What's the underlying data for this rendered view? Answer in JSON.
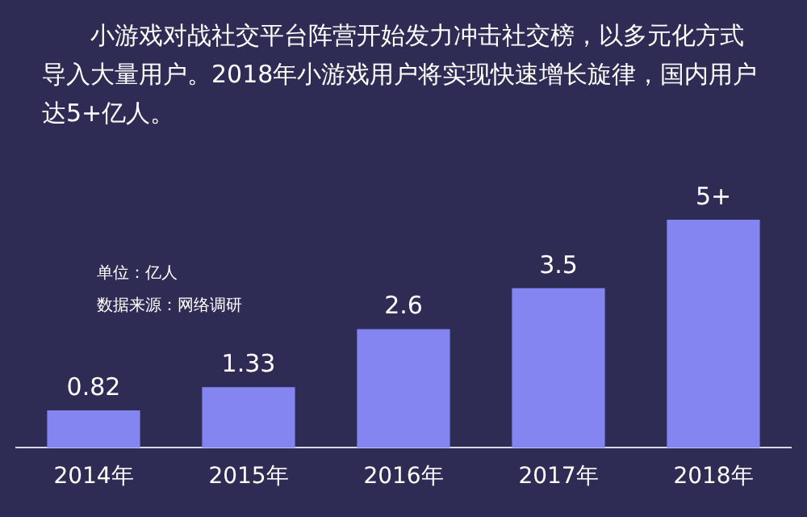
{
  "chart_data": {
    "type": "bar",
    "title": "小游戏对战社交平台阵营开始发力冲击社交榜，以多元化方式导入大量用户。2018年小游戏用户将实现快速增长旋律，国内用户达5+亿人。",
    "categories": [
      "2014年",
      "2015年",
      "2016年",
      "2017年",
      "2018年"
    ],
    "values": [
      0.82,
      1.33,
      2.6,
      3.5,
      5
    ],
    "value_labels": [
      "0.82",
      "1.33",
      "2.6",
      "3.5",
      "5+"
    ],
    "color": "#8585f2",
    "annotations": [
      "单位：亿人",
      "数据来源：网络调研"
    ],
    "legend": false,
    "grid": false
  }
}
